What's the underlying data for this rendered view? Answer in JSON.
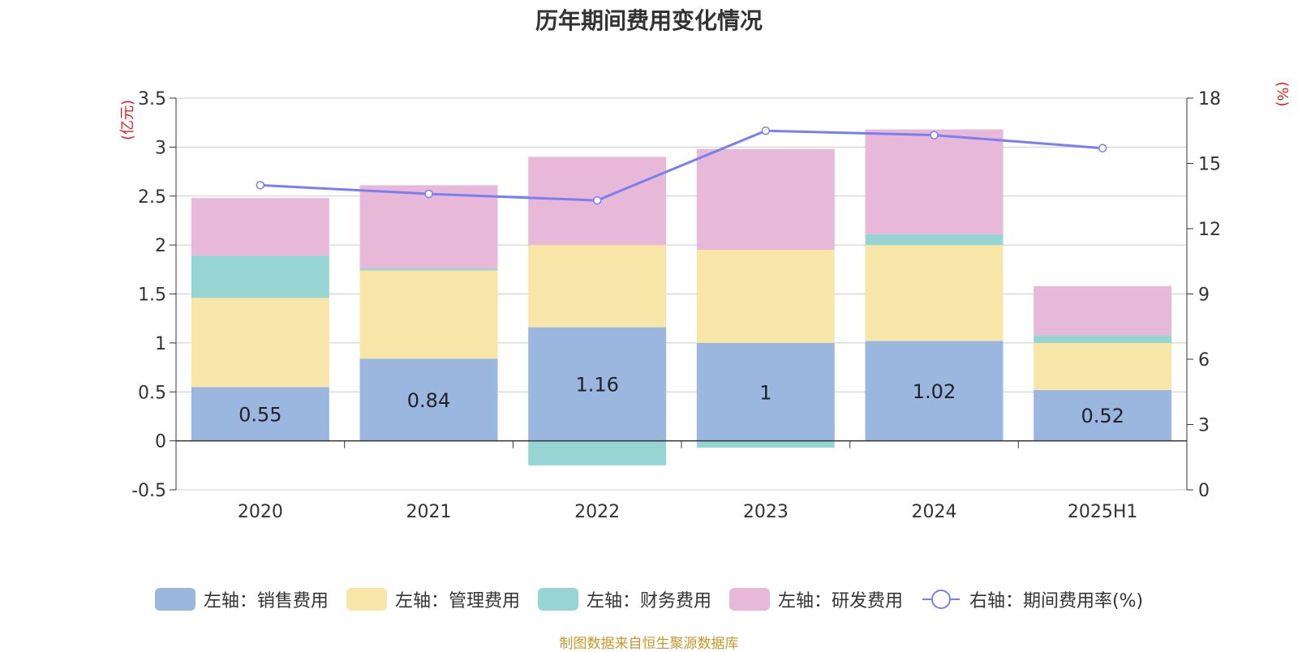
{
  "chart_data": {
    "type": "bar",
    "title": "历年期间费用变化情况",
    "categories": [
      "2020",
      "2021",
      "2022",
      "2023",
      "2024",
      "2025H1"
    ],
    "left_axis": {
      "unit": "(亿元)",
      "ylim": [
        -0.5,
        3.5
      ],
      "ticks": [
        "-0.5",
        "0",
        "0.5",
        "1",
        "1.5",
        "2",
        "2.5",
        "3",
        "3.5"
      ]
    },
    "right_axis": {
      "unit": "(%)",
      "ylim": [
        0,
        18
      ],
      "ticks": [
        "0",
        "3",
        "6",
        "9",
        "12",
        "15",
        "18"
      ]
    },
    "series": [
      {
        "name": "左轴：销售费用",
        "kind": "bar",
        "color": "#9bb7e0",
        "values": [
          0.55,
          0.84,
          1.16,
          1.0,
          1.02,
          0.52
        ],
        "labels": [
          "0.55",
          "0.84",
          "1.16",
          "1",
          "1.02",
          "0.52"
        ]
      },
      {
        "name": "左轴：管理费用",
        "kind": "bar",
        "color": "#f8e6a8",
        "values": [
          0.91,
          0.9,
          0.84,
          0.95,
          0.98,
          0.48
        ]
      },
      {
        "name": "左轴：财务费用",
        "kind": "bar",
        "color": "#97d4d4",
        "values": [
          0.43,
          0.02,
          -0.25,
          -0.07,
          0.11,
          0.08
        ]
      },
      {
        "name": "左轴：研发费用",
        "kind": "bar",
        "color": "#e8b8d8",
        "values": [
          0.59,
          0.85,
          0.9,
          1.03,
          1.07,
          0.5
        ]
      },
      {
        "name": "右轴：期间费用率(%)",
        "kind": "line",
        "axis": "right",
        "color": "#7a7ef0",
        "values": [
          14.0,
          13.6,
          13.3,
          16.5,
          16.3,
          15.7
        ]
      }
    ],
    "grid": true,
    "legend_position": "bottom"
  },
  "footer": "制图数据来自恒生聚源数据库"
}
